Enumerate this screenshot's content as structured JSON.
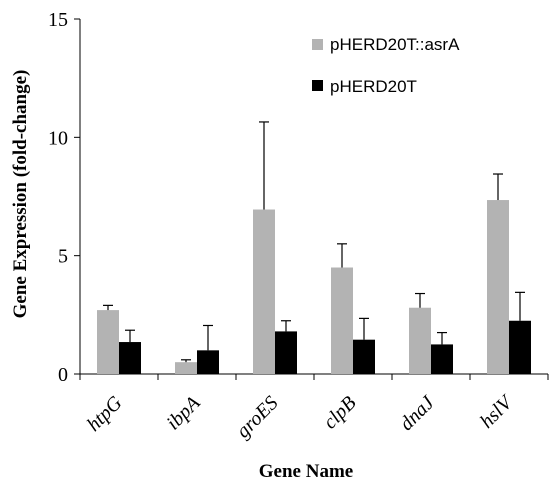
{
  "chart_data": {
    "type": "bar",
    "categories": [
      "htpG",
      "ibpA",
      "groES",
      "clpB",
      "dnaJ",
      "hslV"
    ],
    "series": [
      {
        "name": "pHERD20T::asrA",
        "color": "#b3b3b3",
        "values": [
          2.7,
          0.5,
          6.95,
          4.5,
          2.8,
          7.35
        ],
        "errors": [
          0.2,
          0.1,
          3.7,
          1.0,
          0.6,
          1.1
        ]
      },
      {
        "name": "pHERD20T",
        "color": "#000000",
        "values": [
          1.35,
          1.0,
          1.8,
          1.45,
          1.25,
          2.25
        ],
        "errors": [
          0.5,
          1.05,
          0.45,
          0.9,
          0.5,
          1.2
        ]
      }
    ],
    "xlabel": "Gene Name",
    "ylabel": "Gene Expression (fold-change)",
    "ylim": [
      0,
      15
    ],
    "yticks": [
      "0",
      "5",
      "10",
      "15"
    ],
    "grid": false,
    "legend_position": "top-right"
  }
}
